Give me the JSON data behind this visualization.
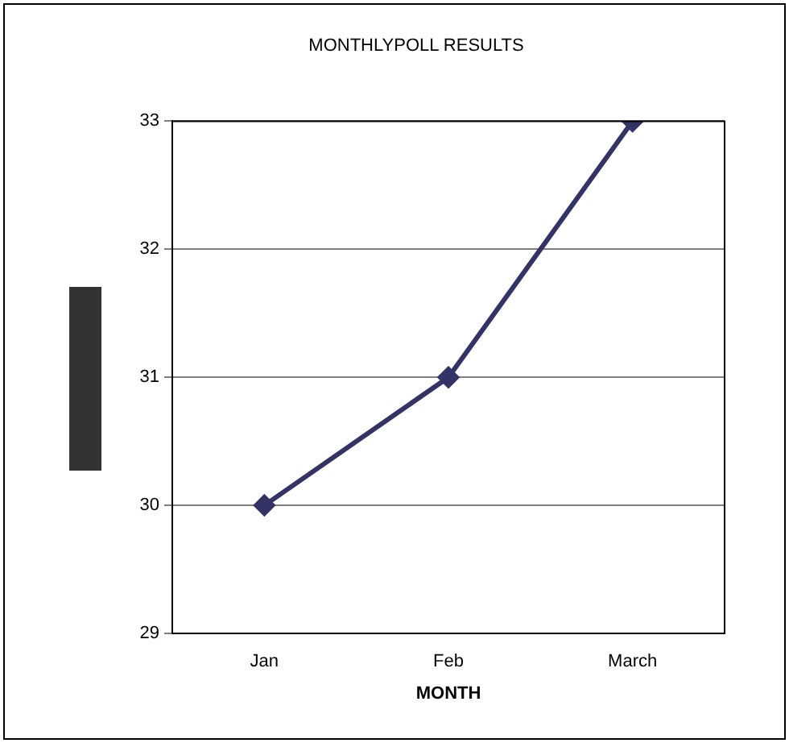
{
  "chart_data": {
    "type": "line",
    "title": "MONTHLYPOLL RESULTS",
    "xlabel": "MONTH",
    "categories": [
      "Jan",
      "Feb",
      "March"
    ],
    "series": [
      {
        "color": "#333366",
        "values": [
          30,
          31,
          33
        ]
      }
    ],
    "ylim": [
      29,
      33
    ],
    "yticks": [
      29,
      30,
      31,
      32,
      33
    ],
    "grid": "y",
    "legend": false,
    "marker": "diamond",
    "line_style": "solid"
  }
}
